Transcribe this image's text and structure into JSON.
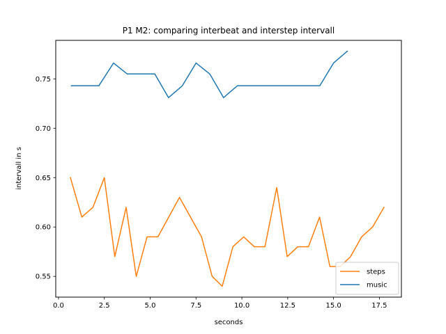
{
  "chart_data": {
    "type": "line",
    "title": "P1 M2: comparing interbeat and interstep intervall",
    "xlabel": "seconds",
    "ylabel": "intervall in s",
    "xlim": [
      -0.15,
      18.7
    ],
    "ylim": [
      0.529,
      0.789
    ],
    "xticks": [
      "0.0",
      "2.5",
      "5.0",
      "7.5",
      "10.0",
      "12.5",
      "15.0",
      "17.5"
    ],
    "yticks": [
      "0.55",
      "0.60",
      "0.65",
      "0.70",
      "0.75"
    ],
    "grid": false,
    "legend_position": "lower-right",
    "series": [
      {
        "name": "steps",
        "color": "#ff7f0e",
        "x": [
          0.65,
          1.27,
          1.88,
          2.5,
          3.07,
          3.69,
          4.24,
          4.83,
          5.42,
          6.6,
          7.8,
          8.38,
          8.93,
          9.51,
          10.1,
          10.68,
          11.26,
          11.9,
          12.47,
          13.05,
          13.63,
          14.24,
          14.8,
          15.36,
          15.93,
          16.53,
          17.13,
          17.75
        ],
        "y": [
          0.65,
          0.61,
          0.62,
          0.65,
          0.57,
          0.62,
          0.55,
          0.59,
          0.59,
          0.63,
          0.59,
          0.55,
          0.54,
          0.58,
          0.59,
          0.58,
          0.58,
          0.64,
          0.57,
          0.58,
          0.58,
          0.61,
          0.56,
          0.56,
          0.57,
          0.59,
          0.6,
          0.62
        ]
      },
      {
        "name": "music",
        "color": "#1f77b4",
        "x": [
          0.7,
          2.2,
          3.0,
          3.75,
          5.25,
          6.0,
          6.75,
          7.5,
          8.25,
          9.0,
          9.75,
          14.25,
          15.0,
          15.75
        ],
        "y": [
          0.743,
          0.743,
          0.766,
          0.755,
          0.755,
          0.731,
          0.743,
          0.766,
          0.755,
          0.731,
          0.743,
          0.743,
          0.766,
          0.778
        ]
      }
    ]
  }
}
